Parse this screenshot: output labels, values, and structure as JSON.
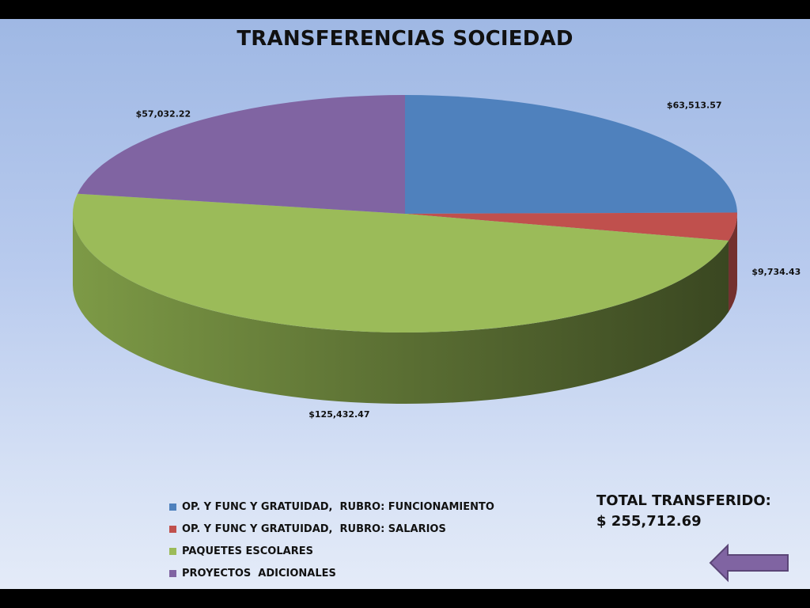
{
  "chart_data": {
    "type": "pie",
    "title": "TRANSFERENCIAS SOCIEDAD",
    "three_d": true,
    "categories": [
      "OP. Y FUNC Y GRATUIDAD,  RUBRO: FUNCIONAMIENTO",
      "OP. Y FUNC Y GRATUIDAD,  RUBRO: SALARIOS",
      "PAQUETES ESCOLARES",
      "PROYECTOS  ADICIONALES"
    ],
    "values": [
      63513.57,
      9734.43,
      125432.47,
      57032.22
    ],
    "value_labels": [
      "$63,513.57",
      "$9,734.43",
      "$125,432.47",
      "$57,032.22"
    ],
    "colors": [
      "#4f81bd",
      "#c0504d",
      "#9bbb59",
      "#8064a2"
    ],
    "legend_position": "bottom"
  },
  "total": {
    "label": "TOTAL TRANSFERIDO:",
    "value": "$ 255,712.69"
  },
  "nav": {
    "back_icon": "left-arrow-icon",
    "back_color": "#8064a2"
  }
}
